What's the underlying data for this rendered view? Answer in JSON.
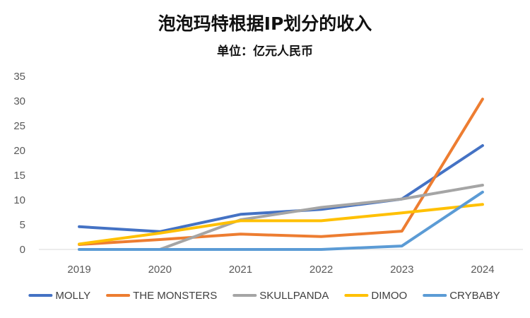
{
  "chart_data": {
    "type": "line",
    "title": "泡泡玛特根据IP划分的收入",
    "subtitle": "单位：亿元人民币",
    "xlabel": "",
    "ylabel": "",
    "categories": [
      "2019",
      "2020",
      "2021",
      "2022",
      "2023",
      "2024"
    ],
    "y_ticks": [
      "0",
      "5",
      "10",
      "15",
      "20",
      "25",
      "30",
      "35"
    ],
    "ylim": [
      0,
      35
    ],
    "grid": false,
    "legend_position": "bottom",
    "series": [
      {
        "name": "MOLLY",
        "color": "#4472C4",
        "values": [
          4.6,
          3.6,
          7.1,
          8.1,
          10.2,
          21.0
        ]
      },
      {
        "name": "THE MONSTERS",
        "color": "#ED7D31",
        "values": [
          1.0,
          2.0,
          3.1,
          2.6,
          3.7,
          30.4
        ]
      },
      {
        "name": "SKULLPANDA",
        "color": "#A5A5A5",
        "values": [
          0.0,
          0.0,
          6.0,
          8.5,
          10.2,
          13.0
        ]
      },
      {
        "name": "DIMOO",
        "color": "#FFC000",
        "values": [
          1.1,
          3.3,
          5.8,
          5.8,
          7.4,
          9.1
        ]
      },
      {
        "name": "CRYBABY",
        "color": "#5B9BD5",
        "values": [
          0.0,
          0.0,
          0.0,
          0.0,
          0.7,
          11.6
        ]
      }
    ]
  }
}
